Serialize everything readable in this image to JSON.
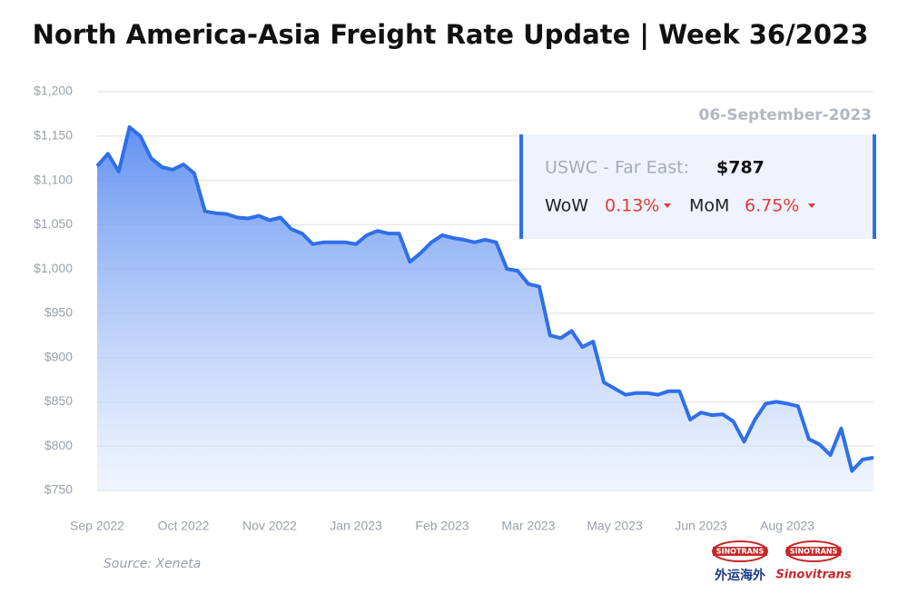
{
  "chart_data": {
    "type": "area",
    "title": "North America-Asia Freight Rate Update | Week 36/2023",
    "categories": [
      "Sep 2022",
      null,
      null,
      null,
      null,
      null,
      null,
      null,
      "Oct 2022",
      null,
      null,
      null,
      null,
      null,
      null,
      null,
      "Nov 2022",
      null,
      null,
      null,
      null,
      null,
      null,
      null,
      "Jan 2023",
      null,
      null,
      null,
      null,
      null,
      null,
      null,
      "Feb 2023",
      null,
      null,
      null,
      null,
      null,
      null,
      null,
      "Mar 2023",
      null,
      null,
      null,
      null,
      null,
      null,
      null,
      "May 2023",
      null,
      null,
      null,
      null,
      null,
      null,
      null,
      "Jun 2023",
      null,
      null,
      null,
      null,
      null,
      null,
      null,
      "Aug 2023",
      null,
      null,
      null,
      null,
      null,
      null,
      null,
      null
    ],
    "values": [
      1116,
      1130,
      1110,
      1160,
      1150,
      1125,
      1115,
      1112,
      1118,
      1108,
      1065,
      1063,
      1062,
      1058,
      1057,
      1060,
      1055,
      1058,
      1045,
      1040,
      1028,
      1030,
      1030,
      1030,
      1028,
      1038,
      1043,
      1040,
      1040,
      1008,
      1018,
      1030,
      1038,
      1035,
      1033,
      1030,
      1033,
      1030,
      1000,
      998,
      983,
      980,
      925,
      922,
      930,
      912,
      918,
      872,
      865,
      858,
      860,
      860,
      858,
      862,
      862,
      830,
      838,
      835,
      836,
      828,
      805,
      830,
      848,
      850,
      848,
      845,
      808,
      802,
      790,
      820,
      772,
      785,
      787
    ],
    "color": "#2f6fe8",
    "ylim": [
      750,
      1200
    ],
    "yticks": [
      {
        "value": 750,
        "label": "$750"
      },
      {
        "value": 800,
        "label": "$800"
      },
      {
        "value": 850,
        "label": "$850"
      },
      {
        "value": 900,
        "label": "$900"
      },
      {
        "value": 950,
        "label": "$950"
      },
      {
        "value": 1000,
        "label": "$1,000"
      },
      {
        "value": 1050,
        "label": "$1,050"
      },
      {
        "value": 1100,
        "label": "$1,100"
      },
      {
        "value": 1150,
        "label": "$1,150"
      },
      {
        "value": 1200,
        "label": "$1,200"
      }
    ],
    "grid": true,
    "annotation": {
      "date": "06-September-2023",
      "route": "USWC - Far East:",
      "price": "$787",
      "wow_label": "WoW",
      "wow": "0.13%",
      "mom_label": "MoM",
      "mom": "6.75%"
    },
    "source": "Source: Xeneta",
    "logo": {
      "brand1": "SINOTRANS",
      "brand2": "SINOTRANS",
      "chinese": "外运海外",
      "name": "Sinovitrans"
    }
  }
}
